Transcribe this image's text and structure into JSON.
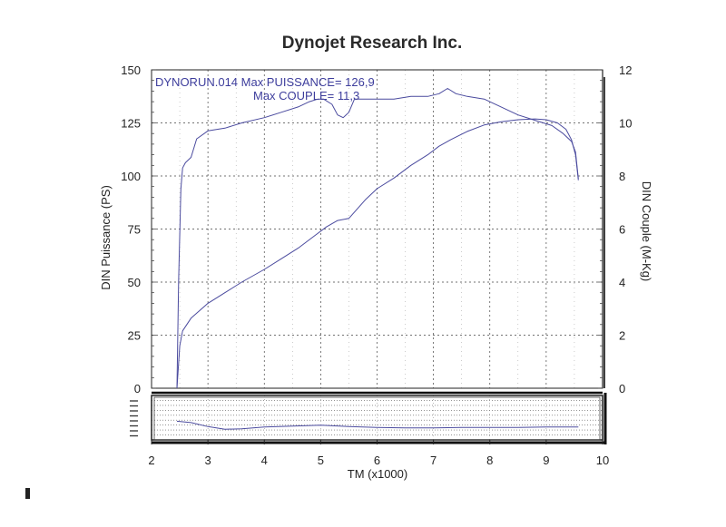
{
  "chart_data": {
    "type": "line",
    "title": "Dynojet Research Inc.",
    "xlabel": "TM (x1000)",
    "ylabel_left": "DIN Puissance (PS)",
    "ylabel_right": "DIN Couple (M-Kg)",
    "xlim": [
      2,
      10
    ],
    "ylim_left": [
      0,
      150
    ],
    "ylim_right": [
      0,
      12
    ],
    "x_ticks": [
      "2",
      "3",
      "4",
      "5",
      "6",
      "7",
      "8",
      "9",
      "10"
    ],
    "y_left_ticks": [
      "0",
      "25",
      "50",
      "75",
      "100",
      "125",
      "150"
    ],
    "y_right_ticks": [
      "0",
      "2",
      "4",
      "6",
      "8",
      "10",
      "12"
    ],
    "grid": true,
    "annotations": [
      "DYNORUN.014  Max PUISSANCE= 126,9",
      "Max COUPLE= 11,3"
    ],
    "series": [
      {
        "axis": "right",
        "color": "#4a4a9e",
        "x": [
          2.45,
          2.48,
          2.52,
          2.55,
          2.6,
          2.7,
          2.8,
          3.0,
          3.3,
          3.6,
          4.0,
          4.3,
          4.6,
          4.8,
          4.95,
          5.05,
          5.2,
          5.3,
          5.4,
          5.5,
          5.6,
          5.75,
          6.0,
          6.3,
          6.6,
          6.9,
          7.1,
          7.25,
          7.4,
          7.6,
          7.9,
          8.2,
          8.5,
          8.8,
          9.1,
          9.3,
          9.45,
          9.52,
          9.57
        ],
        "y": [
          0,
          4.0,
          7.5,
          8.3,
          8.5,
          8.7,
          9.4,
          9.7,
          9.8,
          10.0,
          10.2,
          10.4,
          10.6,
          10.8,
          10.9,
          10.9,
          10.7,
          10.3,
          10.2,
          10.4,
          10.9,
          10.9,
          10.9,
          10.9,
          11.0,
          11.0,
          11.1,
          11.3,
          11.1,
          11.0,
          10.9,
          10.6,
          10.3,
          10.1,
          9.9,
          9.6,
          9.3,
          8.9,
          7.9
        ]
      },
      {
        "axis": "left",
        "color": "#4a4a9e",
        "x": [
          2.45,
          2.5,
          2.55,
          2.7,
          3.0,
          3.3,
          3.6,
          4.0,
          4.3,
          4.6,
          4.9,
          5.1,
          5.3,
          5.5,
          5.6,
          5.8,
          6.0,
          6.3,
          6.6,
          6.9,
          7.1,
          7.3,
          7.6,
          7.9,
          8.2,
          8.5,
          8.8,
          9.0,
          9.2,
          9.35,
          9.45,
          9.52,
          9.57
        ],
        "y": [
          0,
          20,
          27,
          33,
          40,
          45,
          50,
          56,
          61,
          66,
          72,
          76,
          79,
          80,
          83,
          89,
          94,
          99,
          105,
          110,
          114,
          117,
          121,
          124,
          125.5,
          126.5,
          126.9,
          126.5,
          125,
          122,
          117,
          110,
          98
        ]
      },
      {
        "axis": "mini",
        "color": "#4a4a9e",
        "x": [
          2.45,
          2.7,
          3.0,
          3.3,
          3.6,
          4.0,
          4.5,
          5.0,
          5.5,
          6.0,
          6.5,
          7.0,
          7.5,
          8.0,
          8.5,
          9.0,
          9.57
        ],
        "y": [
          4.2,
          3.9,
          3.0,
          2.4,
          2.5,
          2.9,
          3.1,
          3.3,
          3.0,
          2.8,
          2.7,
          2.7,
          2.8,
          2.8,
          2.8,
          2.9,
          2.9
        ]
      }
    ]
  }
}
